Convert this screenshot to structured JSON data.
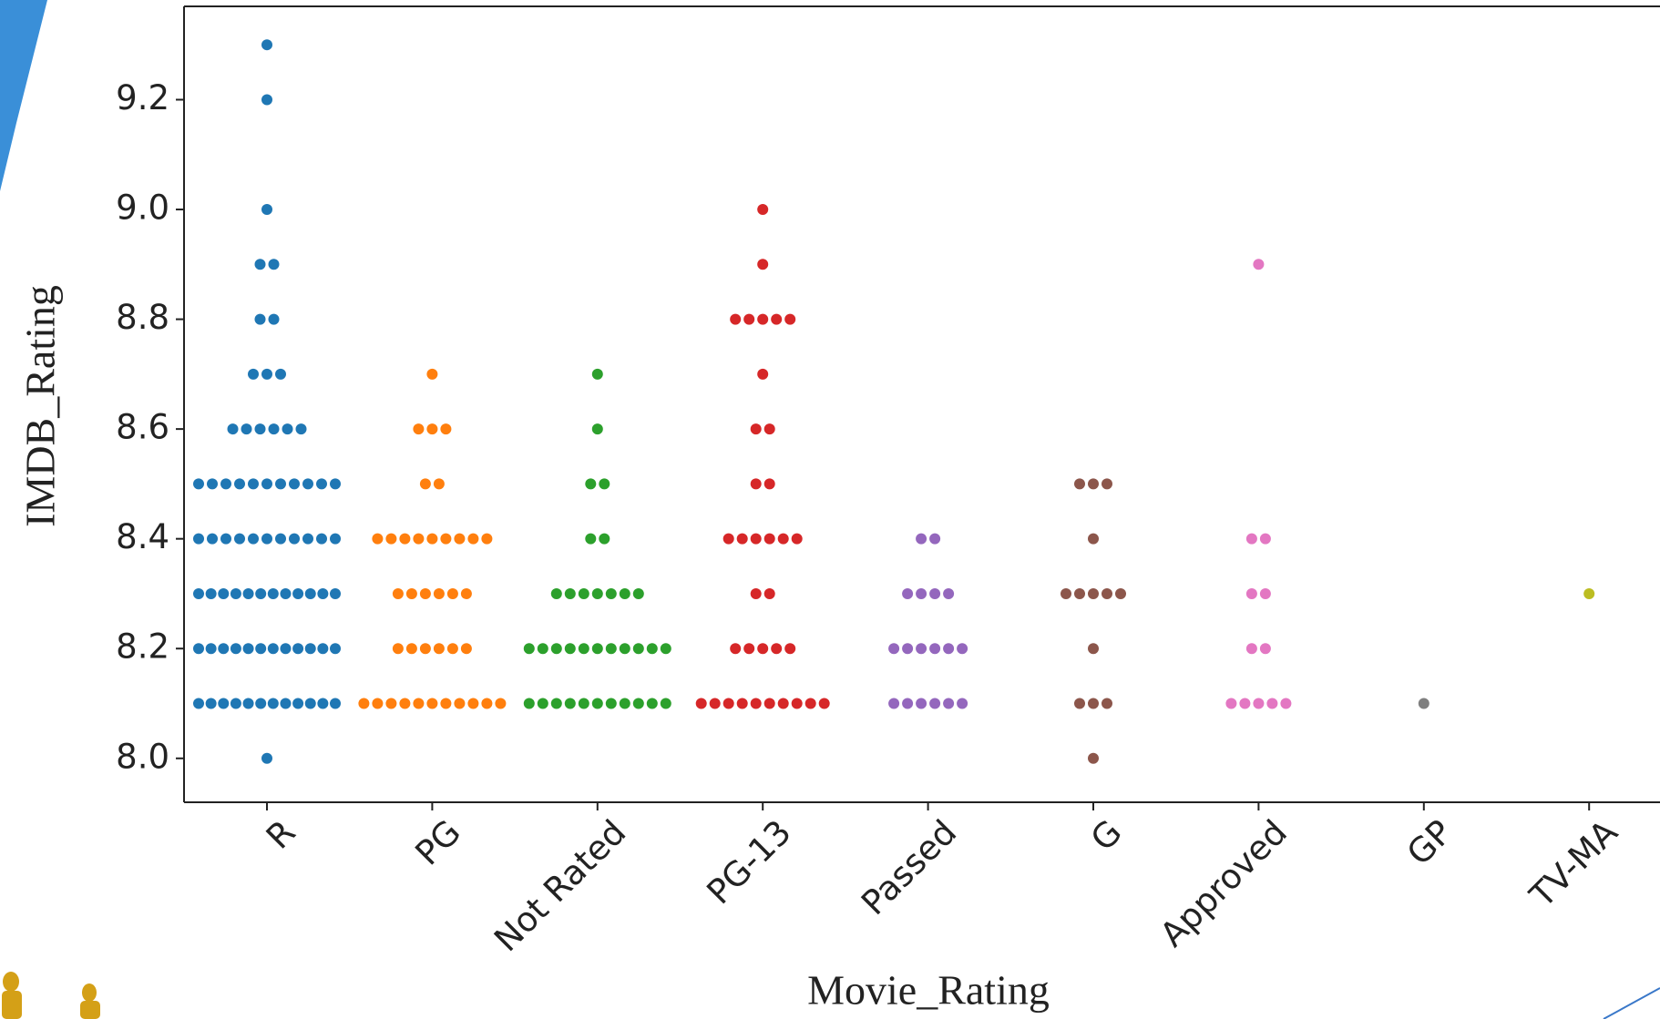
{
  "chart_data": {
    "type": "swarm",
    "x_label": "Movie_Rating",
    "y_label": "IMDB_Rating",
    "categories": [
      "R",
      "PG",
      "Not Rated",
      "PG-13",
      "Passed",
      "G",
      "Approved",
      "GP",
      "TV-MA"
    ],
    "colors": [
      "#1f77b4",
      "#ff7f0e",
      "#2ca02c",
      "#d62728",
      "#9467bd",
      "#8c564b",
      "#e377c2",
      "#7f7f7f",
      "#bcbd22"
    ],
    "values": [
      [
        9.3,
        9.2,
        9.0,
        8.9,
        8.9,
        8.8,
        8.8,
        8.7,
        8.7,
        8.7,
        8.6,
        8.6,
        8.6,
        8.6,
        8.6,
        8.6,
        8.5,
        8.5,
        8.5,
        8.5,
        8.5,
        8.5,
        8.5,
        8.5,
        8.5,
        8.5,
        8.5,
        8.4,
        8.4,
        8.4,
        8.4,
        8.4,
        8.4,
        8.4,
        8.4,
        8.4,
        8.4,
        8.4,
        8.3,
        8.3,
        8.3,
        8.3,
        8.3,
        8.3,
        8.3,
        8.3,
        8.3,
        8.3,
        8.3,
        8.3,
        8.2,
        8.2,
        8.2,
        8.2,
        8.2,
        8.2,
        8.2,
        8.2,
        8.2,
        8.2,
        8.2,
        8.2,
        8.1,
        8.1,
        8.1,
        8.1,
        8.1,
        8.1,
        8.1,
        8.1,
        8.1,
        8.1,
        8.1,
        8.1,
        8.0
      ],
      [
        8.7,
        8.6,
        8.6,
        8.6,
        8.5,
        8.5,
        8.4,
        8.4,
        8.4,
        8.4,
        8.4,
        8.4,
        8.4,
        8.4,
        8.4,
        8.3,
        8.3,
        8.3,
        8.3,
        8.3,
        8.3,
        8.2,
        8.2,
        8.2,
        8.2,
        8.2,
        8.2,
        8.1,
        8.1,
        8.1,
        8.1,
        8.1,
        8.1,
        8.1,
        8.1,
        8.1,
        8.1,
        8.1
      ],
      [
        8.7,
        8.6,
        8.5,
        8.5,
        8.4,
        8.4,
        8.3,
        8.3,
        8.3,
        8.3,
        8.3,
        8.3,
        8.3,
        8.2,
        8.2,
        8.2,
        8.2,
        8.2,
        8.2,
        8.2,
        8.2,
        8.2,
        8.2,
        8.2,
        8.1,
        8.1,
        8.1,
        8.1,
        8.1,
        8.1,
        8.1,
        8.1,
        8.1,
        8.1,
        8.1
      ],
      [
        9.0,
        8.9,
        8.8,
        8.8,
        8.8,
        8.8,
        8.8,
        8.7,
        8.6,
        8.6,
        8.5,
        8.5,
        8.4,
        8.4,
        8.4,
        8.4,
        8.4,
        8.4,
        8.3,
        8.3,
        8.2,
        8.2,
        8.2,
        8.2,
        8.2,
        8.1,
        8.1,
        8.1,
        8.1,
        8.1,
        8.1,
        8.1,
        8.1,
        8.1,
        8.1
      ],
      [
        8.4,
        8.4,
        8.3,
        8.3,
        8.3,
        8.3,
        8.2,
        8.2,
        8.2,
        8.2,
        8.2,
        8.2,
        8.1,
        8.1,
        8.1,
        8.1,
        8.1,
        8.1
      ],
      [
        8.5,
        8.5,
        8.5,
        8.4,
        8.3,
        8.3,
        8.3,
        8.3,
        8.3,
        8.2,
        8.1,
        8.1,
        8.1,
        8.0
      ],
      [
        8.9,
        8.4,
        8.4,
        8.3,
        8.3,
        8.2,
        8.2,
        8.1,
        8.1,
        8.1,
        8.1,
        8.1
      ],
      [
        8.1
      ],
      [
        8.3
      ]
    ],
    "ylim": [
      7.92,
      9.37
    ],
    "yticks": [
      {
        "value": 8,
        "label": "8.0"
      },
      8.2,
      8.4,
      8.6,
      8.8,
      {
        "value": 9,
        "label": "9.0"
      },
      9.2
    ]
  }
}
